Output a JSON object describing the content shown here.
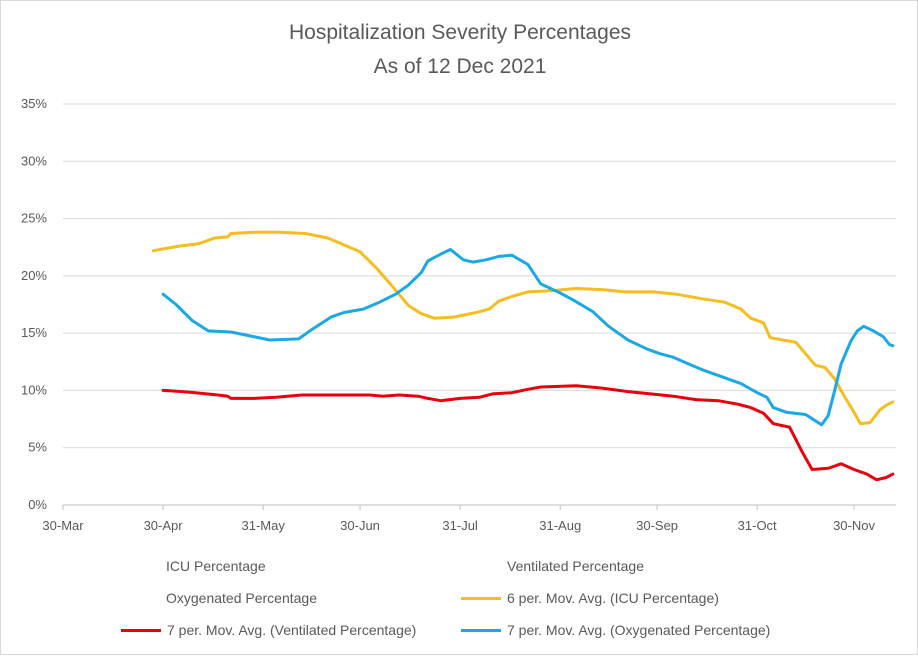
{
  "chart_data": {
    "type": "line",
    "title": "Hospitalization Severity Percentages",
    "subtitle": "As of 12 Dec 2021",
    "xlabel": "",
    "ylabel": "",
    "x_ticks": [
      "30-Mar",
      "30-Apr",
      "31-May",
      "30-Jun",
      "31-Jul",
      "31-Aug",
      "30-Sep",
      "31-Oct",
      "30-Nov"
    ],
    "y_ticks": [
      "0%",
      "5%",
      "10%",
      "15%",
      "20%",
      "25%",
      "30%",
      "35%"
    ],
    "ylim": [
      0,
      35
    ],
    "grid": "horizontal",
    "legend_position": "bottom",
    "series": [
      {
        "name": "ICU Percentage",
        "color": "",
        "points": []
      },
      {
        "name": "Ventilated Percentage",
        "color": "",
        "points": []
      },
      {
        "name": "Oxygenated Percentage",
        "color": "",
        "points": []
      },
      {
        "name": "6 per. Mov. Avg. (ICU Percentage)",
        "color": "#f5bd1f",
        "points": [
          [
            "2021-04-27",
            22.2
          ],
          [
            "2021-05-01",
            22.4
          ],
          [
            "2021-05-05",
            22.6
          ],
          [
            "2021-05-11",
            22.8
          ],
          [
            "2021-05-16",
            23.3
          ],
          [
            "2021-05-20",
            23.4
          ],
          [
            "2021-05-21",
            23.7
          ],
          [
            "2021-05-28",
            23.8
          ],
          [
            "2021-06-05",
            23.8
          ],
          [
            "2021-06-13",
            23.7
          ],
          [
            "2021-06-20",
            23.3
          ],
          [
            "2021-06-30",
            22.1
          ],
          [
            "2021-07-05",
            20.7
          ],
          [
            "2021-07-10",
            19.1
          ],
          [
            "2021-07-15",
            17.4
          ],
          [
            "2021-07-19",
            16.7
          ],
          [
            "2021-07-23",
            16.3
          ],
          [
            "2021-07-29",
            16.4
          ],
          [
            "2021-08-05",
            16.8
          ],
          [
            "2021-08-09",
            17.1
          ],
          [
            "2021-08-12",
            17.8
          ],
          [
            "2021-08-16",
            18.2
          ],
          [
            "2021-08-21",
            18.6
          ],
          [
            "2021-08-28",
            18.7
          ],
          [
            "2021-09-05",
            18.9
          ],
          [
            "2021-09-13",
            18.8
          ],
          [
            "2021-09-20",
            18.6
          ],
          [
            "2021-09-29",
            18.6
          ],
          [
            "2021-10-06",
            18.4
          ],
          [
            "2021-10-14",
            18.0
          ],
          [
            "2021-10-21",
            17.7
          ],
          [
            "2021-10-26",
            17.1
          ],
          [
            "2021-10-29",
            16.3
          ],
          [
            "2021-11-02",
            15.9
          ],
          [
            "2021-11-04",
            14.6
          ],
          [
            "2021-11-08",
            14.4
          ],
          [
            "2021-11-12",
            14.2
          ],
          [
            "2021-11-15",
            13.2
          ],
          [
            "2021-11-18",
            12.2
          ],
          [
            "2021-11-21",
            12.0
          ],
          [
            "2021-11-24",
            11.0
          ],
          [
            "2021-11-27",
            9.5
          ],
          [
            "2021-11-30",
            8.1
          ],
          [
            "2021-12-02",
            7.1
          ],
          [
            "2021-12-05",
            7.2
          ],
          [
            "2021-12-08",
            8.3
          ],
          [
            "2021-12-10",
            8.7
          ],
          [
            "2021-12-12",
            9.0
          ]
        ]
      },
      {
        "name": "7 per. Mov. Avg. (Ventilated Percentage)",
        "color": "#e8000d",
        "points": [
          [
            "2021-04-30",
            10.0
          ],
          [
            "2021-05-06",
            9.9
          ],
          [
            "2021-05-10",
            9.8
          ],
          [
            "2021-05-17",
            9.6
          ],
          [
            "2021-05-20",
            9.5
          ],
          [
            "2021-05-21",
            9.3
          ],
          [
            "2021-05-28",
            9.3
          ],
          [
            "2021-06-04",
            9.4
          ],
          [
            "2021-06-12",
            9.6
          ],
          [
            "2021-06-22",
            9.6
          ],
          [
            "2021-07-03",
            9.6
          ],
          [
            "2021-07-07",
            9.5
          ],
          [
            "2021-07-12",
            9.6
          ],
          [
            "2021-07-18",
            9.5
          ],
          [
            "2021-07-21",
            9.3
          ],
          [
            "2021-07-25",
            9.1
          ],
          [
            "2021-07-31",
            9.3
          ],
          [
            "2021-08-06",
            9.4
          ],
          [
            "2021-08-10",
            9.7
          ],
          [
            "2021-08-16",
            9.8
          ],
          [
            "2021-08-21",
            10.1
          ],
          [
            "2021-08-25",
            10.3
          ],
          [
            "2021-09-05",
            10.4
          ],
          [
            "2021-09-13",
            10.2
          ],
          [
            "2021-09-21",
            9.9
          ],
          [
            "2021-09-28",
            9.7
          ],
          [
            "2021-10-05",
            9.5
          ],
          [
            "2021-10-12",
            9.2
          ],
          [
            "2021-10-19",
            9.1
          ],
          [
            "2021-10-25",
            8.8
          ],
          [
            "2021-10-29",
            8.5
          ],
          [
            "2021-11-02",
            8.0
          ],
          [
            "2021-11-05",
            7.1
          ],
          [
            "2021-11-10",
            6.8
          ],
          [
            "2021-11-14",
            4.6
          ],
          [
            "2021-11-17",
            3.1
          ],
          [
            "2021-11-22",
            3.2
          ],
          [
            "2021-11-26",
            3.6
          ],
          [
            "2021-11-30",
            3.1
          ],
          [
            "2021-12-04",
            2.7
          ],
          [
            "2021-12-07",
            2.2
          ],
          [
            "2021-12-10",
            2.4
          ],
          [
            "2021-12-12",
            2.7
          ]
        ]
      },
      {
        "name": "7 per. Mov. Avg. (Oxygenated Percentage)",
        "color": "#1ca8e4",
        "points": [
          [
            "2021-04-30",
            18.4
          ],
          [
            "2021-05-04",
            17.5
          ],
          [
            "2021-05-09",
            16.1
          ],
          [
            "2021-05-14",
            15.2
          ],
          [
            "2021-05-21",
            15.1
          ],
          [
            "2021-05-28",
            14.7
          ],
          [
            "2021-06-02",
            14.4
          ],
          [
            "2021-06-11",
            14.5
          ],
          [
            "2021-06-15",
            15.3
          ],
          [
            "2021-06-21",
            16.4
          ],
          [
            "2021-06-25",
            16.8
          ],
          [
            "2021-07-01",
            17.1
          ],
          [
            "2021-07-06",
            17.7
          ],
          [
            "2021-07-11",
            18.4
          ],
          [
            "2021-07-15",
            19.2
          ],
          [
            "2021-07-19",
            20.3
          ],
          [
            "2021-07-21",
            21.3
          ],
          [
            "2021-07-25",
            21.9
          ],
          [
            "2021-07-28",
            22.3
          ],
          [
            "2021-08-01",
            21.4
          ],
          [
            "2021-08-04",
            21.2
          ],
          [
            "2021-08-08",
            21.4
          ],
          [
            "2021-08-12",
            21.7
          ],
          [
            "2021-08-16",
            21.8
          ],
          [
            "2021-08-21",
            21.0
          ],
          [
            "2021-08-25",
            19.3
          ],
          [
            "2021-08-31",
            18.5
          ],
          [
            "2021-09-04",
            17.9
          ],
          [
            "2021-09-10",
            16.9
          ],
          [
            "2021-09-15",
            15.6
          ],
          [
            "2021-09-21",
            14.4
          ],
          [
            "2021-09-27",
            13.6
          ],
          [
            "2021-10-01",
            13.2
          ],
          [
            "2021-10-05",
            12.9
          ],
          [
            "2021-10-09",
            12.4
          ],
          [
            "2021-10-14",
            11.8
          ],
          [
            "2021-10-20",
            11.2
          ],
          [
            "2021-10-26",
            10.6
          ],
          [
            "2021-10-31",
            9.8
          ],
          [
            "2021-11-03",
            9.4
          ],
          [
            "2021-11-05",
            8.5
          ],
          [
            "2021-11-09",
            8.1
          ],
          [
            "2021-11-15",
            7.9
          ],
          [
            "2021-11-20",
            7.0
          ],
          [
            "2021-11-22",
            7.8
          ],
          [
            "2021-11-24",
            10.0
          ],
          [
            "2021-11-26",
            12.3
          ],
          [
            "2021-11-29",
            14.3
          ],
          [
            "2021-12-01",
            15.2
          ],
          [
            "2021-12-03",
            15.6
          ],
          [
            "2021-12-06",
            15.2
          ],
          [
            "2021-12-09",
            14.7
          ],
          [
            "2021-12-11",
            14.0
          ],
          [
            "2021-12-12",
            13.9
          ]
        ]
      }
    ]
  }
}
